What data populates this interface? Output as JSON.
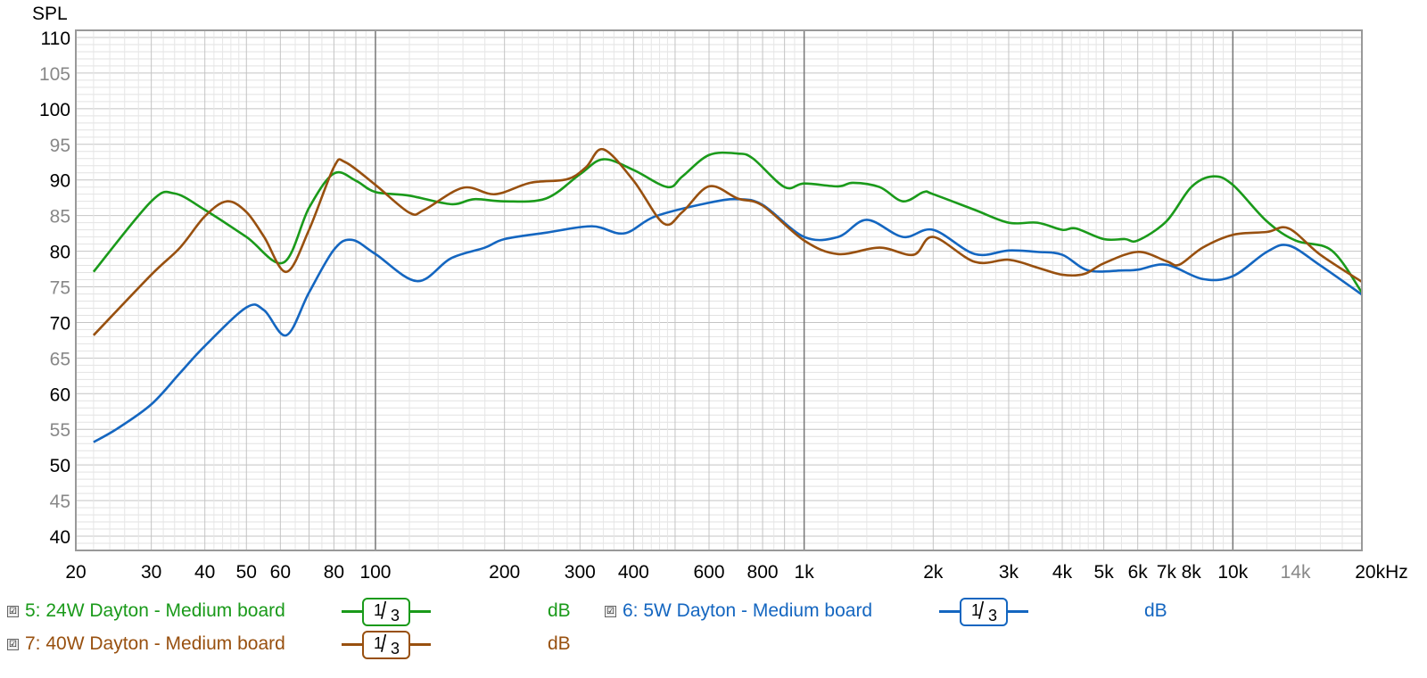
{
  "chart_data": {
    "type": "line",
    "ylabel": "SPL",
    "x_scale": "log",
    "xlim": [
      20,
      20000
    ],
    "ylim": [
      38,
      111
    ],
    "grid": true,
    "x_ticks": [
      {
        "v": 20,
        "label": "20"
      },
      {
        "v": 30,
        "label": "30"
      },
      {
        "v": 40,
        "label": "40"
      },
      {
        "v": 50,
        "label": "50"
      },
      {
        "v": 60,
        "label": "60"
      },
      {
        "v": 80,
        "label": "80"
      },
      {
        "v": 100,
        "label": "100"
      },
      {
        "v": 200,
        "label": "200"
      },
      {
        "v": 300,
        "label": "300"
      },
      {
        "v": 400,
        "label": "400"
      },
      {
        "v": 600,
        "label": "600"
      },
      {
        "v": 800,
        "label": "800"
      },
      {
        "v": 1000,
        "label": "1k"
      },
      {
        "v": 2000,
        "label": "2k"
      },
      {
        "v": 3000,
        "label": "3k"
      },
      {
        "v": 4000,
        "label": "4k"
      },
      {
        "v": 5000,
        "label": "5k"
      },
      {
        "v": 6000,
        "label": "6k"
      },
      {
        "v": 7000,
        "label": "7k"
      },
      {
        "v": 8000,
        "label": "8k"
      },
      {
        "v": 10000,
        "label": "10k"
      },
      {
        "v": 14000,
        "label": "14k",
        "muted": true
      },
      {
        "v": 20000,
        "label": "20kHz"
      }
    ],
    "y_ticks": [
      {
        "v": 110,
        "label": "110"
      },
      {
        "v": 105,
        "label": "105",
        "muted": true
      },
      {
        "v": 100,
        "label": "100"
      },
      {
        "v": 95,
        "label": "95",
        "muted": true
      },
      {
        "v": 90,
        "label": "90"
      },
      {
        "v": 85,
        "label": "85",
        "muted": true
      },
      {
        "v": 80,
        "label": "80"
      },
      {
        "v": 75,
        "label": "75",
        "muted": true
      },
      {
        "v": 70,
        "label": "70"
      },
      {
        "v": 65,
        "label": "65",
        "muted": true
      },
      {
        "v": 60,
        "label": "60"
      },
      {
        "v": 55,
        "label": "55",
        "muted": true
      },
      {
        "v": 50,
        "label": "50"
      },
      {
        "v": 45,
        "label": "45",
        "muted": true
      },
      {
        "v": 40,
        "label": "40"
      }
    ],
    "series": [
      {
        "name": "5: 24W Dayton - Medium board",
        "color": "#1a9a1a",
        "x": [
          22,
          30,
          34,
          40,
          50,
          61,
          70,
          80,
          90,
          100,
          120,
          150,
          170,
          200,
          250,
          300,
          340,
          400,
          480,
          520,
          600,
          700,
          760,
          900,
          1000,
          1200,
          1300,
          1500,
          1700,
          1900,
          2000,
          2500,
          3000,
          3500,
          4000,
          4300,
          5000,
          5600,
          6000,
          7000,
          8000,
          9000,
          10000,
          12000,
          14000,
          17000,
          20000
        ],
        "y": [
          77.1,
          87.0,
          88.1,
          85.8,
          82.0,
          78.4,
          86.1,
          90.9,
          89.9,
          88.3,
          87.8,
          86.6,
          87.3,
          87.0,
          87.4,
          90.8,
          92.9,
          91.4,
          89.0,
          90.5,
          93.5,
          93.7,
          93.0,
          89.0,
          89.5,
          89.1,
          89.6,
          89.0,
          87.0,
          88.3,
          88.0,
          85.8,
          84.0,
          84.0,
          83.0,
          83.2,
          81.7,
          81.7,
          81.5,
          84.2,
          89.0,
          90.5,
          89.3,
          84.2,
          81.5,
          80.1,
          74.2
        ]
      },
      {
        "name": "6: 5W Dayton - Medium board",
        "color": "#1466c0",
        "x": [
          22,
          25,
          30,
          35,
          40,
          50,
          55,
          62,
          70,
          80,
          88,
          100,
          125,
          150,
          180,
          200,
          250,
          320,
          380,
          450,
          600,
          700,
          800,
          1000,
          1200,
          1400,
          1700,
          2000,
          2500,
          3000,
          3500,
          4000,
          4600,
          5500,
          6000,
          7000,
          8500,
          10000,
          12000,
          13500,
          16000,
          20000
        ],
        "y": [
          53.2,
          55.1,
          58.5,
          62.9,
          66.7,
          72.1,
          71.7,
          68.2,
          74.2,
          80.2,
          81.6,
          79.6,
          75.8,
          79.0,
          80.5,
          81.7,
          82.6,
          83.5,
          82.5,
          84.9,
          86.8,
          87.3,
          86.5,
          82.0,
          82.0,
          84.4,
          82.0,
          83.0,
          79.6,
          80.1,
          79.9,
          79.5,
          77.3,
          77.3,
          77.4,
          78.1,
          76.1,
          76.5,
          79.9,
          80.8,
          78.0,
          73.9
        ]
      },
      {
        "name": "7: 40W Dayton - Medium board",
        "color": "#98500f",
        "x": [
          22,
          30,
          35,
          40,
          45,
          50,
          55,
          62,
          70,
          80,
          85,
          100,
          120,
          130,
          160,
          190,
          230,
          280,
          310,
          340,
          400,
          470,
          520,
          600,
          700,
          800,
          1000,
          1200,
          1500,
          1800,
          2000,
          2500,
          3000,
          3500,
          4000,
          4500,
          5000,
          6000,
          7000,
          7500,
          8500,
          10000,
          12000,
          13500,
          16000,
          20000
        ],
        "y": [
          68.2,
          76.7,
          80.5,
          84.9,
          87.0,
          85.5,
          82.0,
          77.1,
          83.0,
          91.8,
          92.5,
          89.3,
          85.4,
          85.8,
          88.9,
          88.0,
          89.6,
          90.1,
          91.8,
          94.3,
          89.9,
          83.9,
          85.5,
          89.1,
          87.4,
          86.4,
          81.5,
          79.6,
          80.5,
          79.5,
          82.0,
          78.5,
          78.8,
          77.7,
          76.7,
          76.8,
          78.3,
          79.9,
          78.6,
          78.1,
          80.5,
          82.3,
          82.7,
          83.2,
          79.5,
          75.7
        ]
      }
    ]
  },
  "legend": [
    {
      "label": "5: 24W Dayton - Medium board",
      "smoothing_num": "1",
      "smoothing_den": "3",
      "unit": "dB",
      "color": "#1a9a1a",
      "checked": true
    },
    {
      "label": "6: 5W Dayton - Medium board",
      "smoothing_num": "1",
      "smoothing_den": "3",
      "unit": "dB",
      "color": "#1466c0",
      "checked": true
    },
    {
      "label": "7: 40W Dayton - Medium board",
      "smoothing_num": "1",
      "smoothing_den": "3",
      "unit": "dB",
      "color": "#98500f",
      "checked": true
    }
  ],
  "checkbox_glyph": "☑"
}
